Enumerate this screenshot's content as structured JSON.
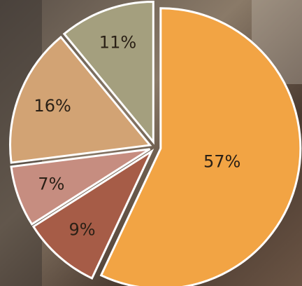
{
  "chart_data": {
    "type": "pie",
    "categories": [
      null,
      null,
      null,
      null,
      null
    ],
    "values": [
      57,
      9,
      7,
      16,
      11
    ],
    "value_labels": [
      "57%",
      "9%",
      "7%",
      "16%",
      "11%"
    ],
    "colors": [
      "#f2a444",
      "#a65c47",
      "#c68d80",
      "#d2a374",
      "#a49f7e"
    ]
  }
}
